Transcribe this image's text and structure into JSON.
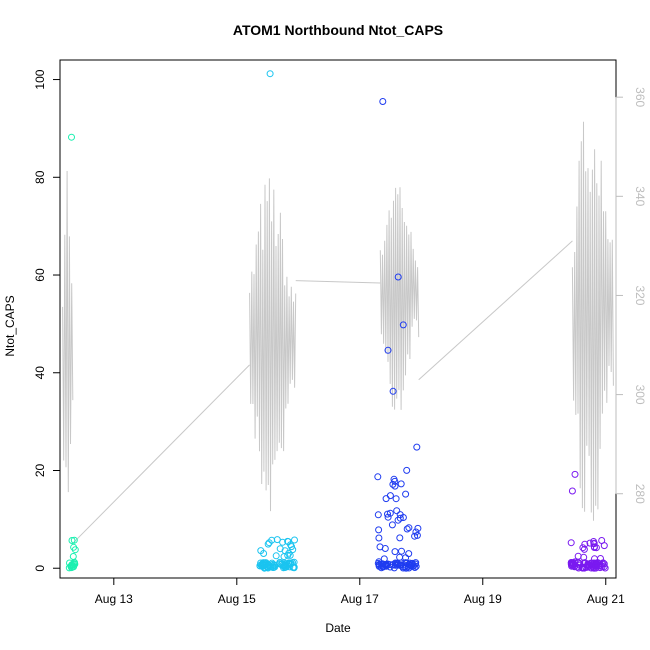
{
  "chart_data": {
    "type": "scatter",
    "title": "ATOM1 Northbound Ntot_CAPS",
    "xlabel": "Date",
    "ylabel": "Ntot_CAPS",
    "x_ticks": [
      "Aug 13",
      "Aug 15",
      "Aug 17",
      "Aug 19",
      "Aug 21"
    ],
    "xlim": [
      "2019-08-12T03:00",
      "2019-08-21T04:00"
    ],
    "ylim": [
      -2,
      104
    ],
    "y_ticks": [
      0,
      20,
      40,
      60,
      80,
      100
    ],
    "y2_ticks": [
      280,
      300,
      320,
      340,
      360
    ],
    "y2lim": [
      263,
      367.5
    ],
    "grid": false,
    "legend": "none",
    "colors": {
      "points_start": "#1af0b0",
      "points_mid": "#1ac4f0",
      "points_mid2": "#1f3cf0",
      "points_end": "#7a1af0",
      "secondary_line": "#c8c8c8",
      "secondary_axis": "#bdbdbd"
    },
    "bursts": [
      {
        "start": "2019-08-12T06:00",
        "end": "2019-08-12T09:00",
        "color": "#1af0b0",
        "peaks": [
          {
            "t": "2019-08-12T07:30",
            "v": 88.2
          }
        ]
      },
      {
        "start": "2019-08-15T09:00",
        "end": "2019-08-15T23:00",
        "color": "#1ac4f0",
        "peaks": [
          {
            "t": "2019-08-15T13:00",
            "v": 101.2
          }
        ]
      },
      {
        "start": "2019-08-17T07:00",
        "end": "2019-08-17T23:00",
        "color": "#1f3cf0",
        "peaks": [
          {
            "t": "2019-08-17T09:00",
            "v": 95.5
          },
          {
            "t": "2019-08-17T15:00",
            "v": 59.6
          },
          {
            "t": "2019-08-17T17:00",
            "v": 49.8
          },
          {
            "t": "2019-08-17T11:00",
            "v": 44.6
          },
          {
            "t": "2019-08-17T13:00",
            "v": 36.2
          }
        ]
      },
      {
        "start": "2019-08-20T10:00",
        "end": "2019-08-21T00:00",
        "color": "#7a1af0",
        "peaks": [
          {
            "t": "2019-08-20T12:00",
            "v": 19.2
          },
          {
            "t": "2019-08-20T11:00",
            "v": 15.8
          }
        ]
      }
    ],
    "secondary_series": {
      "segments": [
        {
          "start": "2019-08-12T04:00",
          "end": "2019-08-12T08:00",
          "low": 270,
          "high": 350
        },
        {
          "start": "2019-08-15T05:00",
          "end": "2019-08-15T23:00",
          "low": 275,
          "high": 345
        },
        {
          "start": "2019-08-17T08:00",
          "end": "2019-08-17T23:00",
          "low": 295,
          "high": 346
        },
        {
          "start": "2019-08-20T11:00",
          "end": "2019-08-21T03:00",
          "low": 268,
          "high": 362
        }
      ],
      "connectors": [
        {
          "from": "2019-08-12T08:00",
          "from_v": 270,
          "to": "2019-08-15T05:00",
          "to_v": 306
        },
        {
          "from": "2019-08-15T23:00",
          "from_v": 323,
          "to": "2019-08-17T08:00",
          "to_v": 322.5
        },
        {
          "from": "2019-08-17T23:00",
          "from_v": 303,
          "to": "2019-08-20T11:00",
          "to_v": 331
        }
      ]
    }
  }
}
